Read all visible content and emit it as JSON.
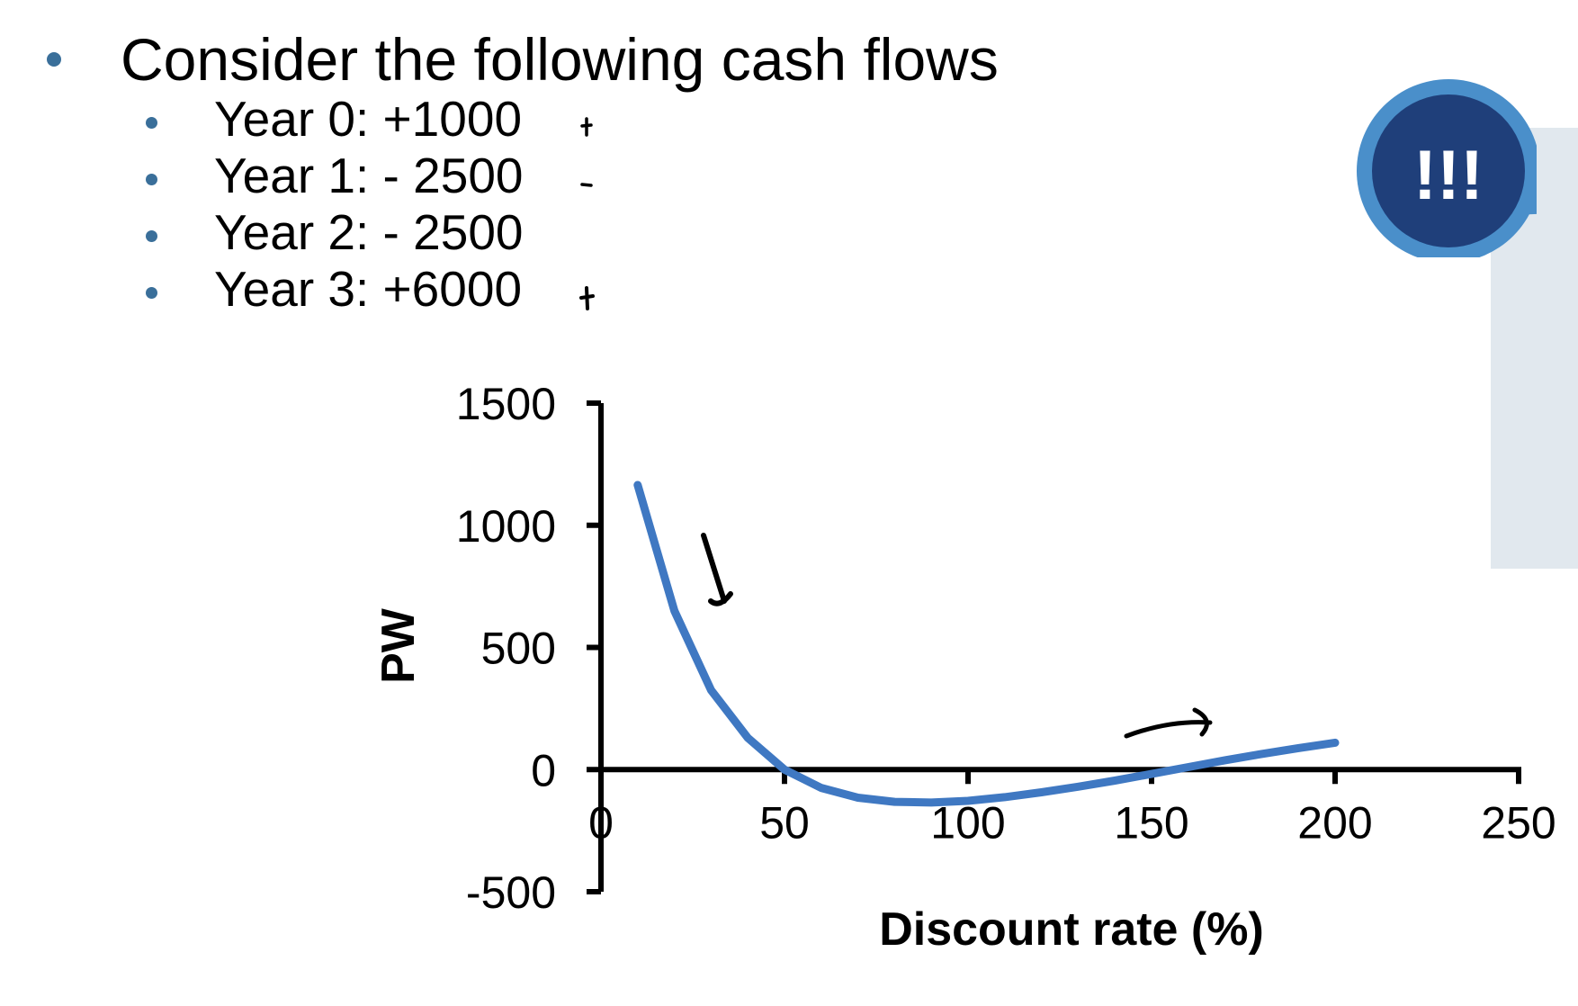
{
  "slide": {
    "heading": "Consider the following cash flows",
    "cash_flows": [
      {
        "label": "Year 0: +1000",
        "sign": "+"
      },
      {
        "label": "Year 1: - 2500",
        "sign": "-"
      },
      {
        "label": "Year 2: - 2500",
        "sign": ""
      },
      {
        "label": "Year 3: +6000",
        "sign": "+"
      }
    ],
    "bubble_text": "!!!",
    "colors": {
      "bullet": "#3a6f9a",
      "bubble_outer": "#4a8fca",
      "bubble_inner": "#1f3f7a",
      "panel": "#e1e8ee"
    }
  },
  "chart_data": {
    "type": "line",
    "title": "",
    "xlabel": "Discount rate (%)",
    "ylabel": "PW",
    "xlim": [
      0,
      250
    ],
    "ylim": [
      -500,
      1500
    ],
    "xticks": [
      0,
      50,
      100,
      150,
      200,
      250
    ],
    "yticks": [
      1500,
      1000,
      500,
      0,
      -500
    ],
    "grid": false,
    "line_color": "#3f78c2",
    "series": [
      {
        "x": [
          10,
          20,
          30,
          40,
          50,
          60,
          70,
          80,
          90,
          100,
          110,
          120,
          130,
          140,
          150,
          160,
          170,
          180,
          190,
          200
        ],
        "values": [
          1165,
          650,
          325,
          130,
          0,
          -75,
          -115,
          -132,
          -135,
          -128,
          -113,
          -93,
          -70,
          -45,
          -18,
          10,
          38,
          64,
          88,
          110
        ]
      }
    ],
    "annotations": [
      {
        "type": "arrow",
        "direction": "down",
        "near_x": 30
      },
      {
        "type": "arrow",
        "direction": "right",
        "near_x": 160
      }
    ]
  }
}
